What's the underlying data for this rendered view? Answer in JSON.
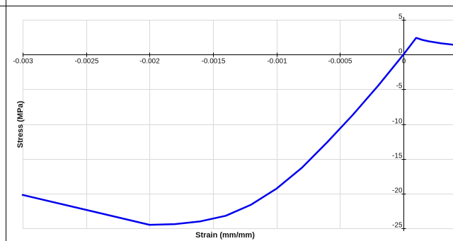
{
  "chart_data": {
    "type": "line",
    "title": "",
    "xlabel": "Strain (mm/mm)",
    "ylabel": "Stress (MPa)",
    "xlim": [
      -0.003,
      0.0004
    ],
    "ylim": [
      -25,
      5
    ],
    "grid": true,
    "legend": "none",
    "colors": {
      "series": "#0000ee",
      "grid": "#d9d9d9",
      "axis": "#000000",
      "frame": "#000000"
    },
    "x_ticks": [
      {
        "value": -0.003,
        "label": "-0.003"
      },
      {
        "value": -0.0025,
        "label": "-0.0025"
      },
      {
        "value": -0.002,
        "label": "-0.002"
      },
      {
        "value": -0.0015,
        "label": "-0.0015"
      },
      {
        "value": -0.001,
        "label": "-0.001"
      },
      {
        "value": -0.0005,
        "label": "-0.0005"
      },
      {
        "value": 0,
        "label": "0"
      }
    ],
    "y_ticks": [
      {
        "value": 5,
        "label": "5"
      },
      {
        "value": 0,
        "label": "0"
      },
      {
        "value": -5,
        "label": "-5"
      },
      {
        "value": -10,
        "label": "-10"
      },
      {
        "value": -15,
        "label": "-15"
      },
      {
        "value": -20,
        "label": "-20"
      },
      {
        "value": -25,
        "label": "-25"
      }
    ],
    "series": [
      {
        "x": [
          -0.003,
          -0.002,
          -0.0018,
          -0.0016,
          -0.0014,
          -0.0012,
          -0.001,
          -0.0008,
          -0.0006,
          -0.0004,
          -0.0002,
          0,
          0.0001,
          0.00015,
          0.0002,
          0.0003,
          0.0004
        ],
        "y": [
          -20.2,
          -24.5,
          -24.4,
          -24.0,
          -23.2,
          -21.6,
          -19.3,
          -16.3,
          -12.6,
          -8.7,
          -4.5,
          0,
          2.4,
          2.1,
          1.9,
          1.6,
          1.4
        ]
      }
    ]
  }
}
